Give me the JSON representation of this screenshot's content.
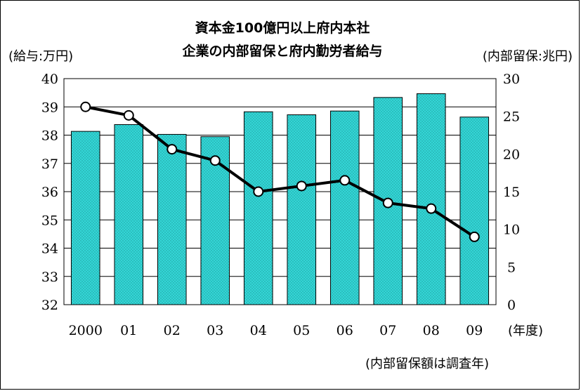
{
  "chart_data": {
    "type": "bar+line",
    "title_line1": "資本金100億円以上府内本社",
    "title_line2": "企業の内部留保と府内勤労者給与",
    "left_axis_label": "(給与:万円)",
    "right_axis_label": "(内部留保:兆円)",
    "x_unit_label": "(年度)",
    "footnote": "(内部留保額は調査年)",
    "categories": [
      "2000",
      "01",
      "02",
      "03",
      "04",
      "05",
      "06",
      "07",
      "08",
      "09"
    ],
    "left_axis": {
      "min": 32,
      "max": 40,
      "ticks": [
        "32",
        "33",
        "34",
        "35",
        "36",
        "37",
        "38",
        "39",
        "40"
      ]
    },
    "right_axis": {
      "min": 0,
      "max": 30,
      "ticks": [
        "0",
        "5",
        "10",
        "15",
        "20",
        "25",
        "30"
      ]
    },
    "series": [
      {
        "kind": "bar",
        "axis": "right",
        "values": [
          23.0,
          23.9,
          22.6,
          22.3,
          25.6,
          25.2,
          25.7,
          27.5,
          28.0,
          24.9
        ],
        "color": "#33d6d6"
      },
      {
        "kind": "line",
        "axis": "left",
        "values": [
          39.0,
          38.7,
          37.5,
          37.1,
          36.0,
          36.2,
          36.4,
          35.6,
          35.4,
          34.4
        ],
        "color": "#000000"
      }
    ],
    "grid": true
  }
}
